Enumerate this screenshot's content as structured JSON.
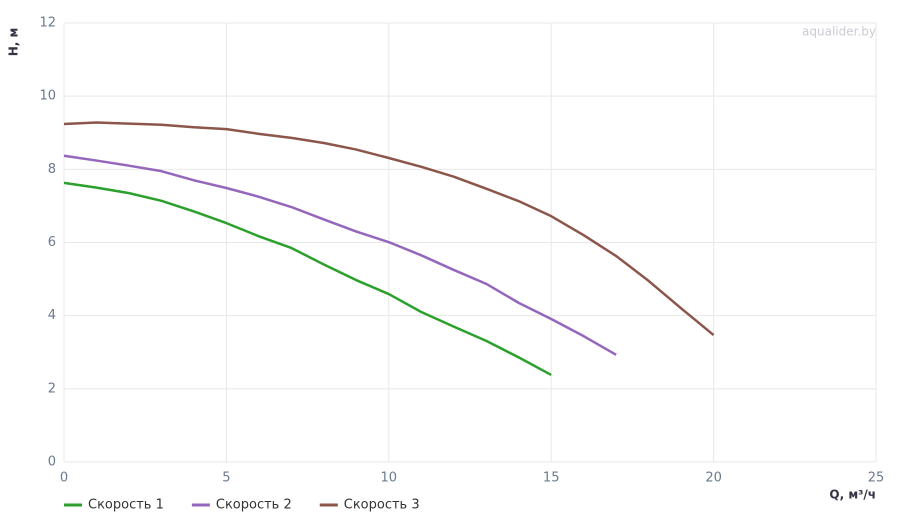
{
  "chart_data": {
    "type": "line",
    "watermark": "aqualider.by",
    "y_label": "H, м",
    "x_label": "Q, м³/ч",
    "x": [
      0,
      1,
      2,
      3,
      4,
      5,
      6,
      7,
      8,
      9,
      10,
      11,
      12,
      13,
      14,
      15,
      16,
      17,
      18,
      19,
      20
    ],
    "series": [
      {
        "name": "Скорость 1",
        "color": "#2ca02c",
        "values": [
          7.63,
          7.5,
          7.35,
          7.14,
          6.85,
          6.53,
          6.17,
          5.85,
          5.4,
          4.97,
          4.59,
          4.1,
          3.7,
          3.31,
          2.86,
          2.38,
          null,
          null,
          null,
          null,
          null
        ]
      },
      {
        "name": "Скорость 2",
        "color": "#9467bd",
        "values": [
          8.37,
          8.24,
          8.1,
          7.95,
          7.7,
          7.49,
          7.25,
          6.97,
          6.63,
          6.3,
          6.01,
          5.65,
          5.25,
          4.87,
          4.35,
          3.91,
          3.44,
          2.93,
          null,
          null,
          null
        ]
      },
      {
        "name": "Скорость 3",
        "color": "#8c564b",
        "values": [
          9.24,
          9.28,
          9.25,
          9.22,
          9.15,
          9.1,
          8.97,
          8.86,
          8.72,
          8.54,
          8.31,
          8.07,
          7.8,
          7.47,
          7.13,
          6.72,
          6.2,
          5.63,
          4.95,
          4.2,
          3.47
        ]
      }
    ],
    "xlim": [
      0,
      25
    ],
    "xticks": [
      0,
      5,
      10,
      15,
      20,
      25
    ],
    "ylim": [
      0,
      12
    ],
    "yticks": [
      0,
      2,
      4,
      6,
      8,
      10,
      12
    ],
    "grid": true
  }
}
